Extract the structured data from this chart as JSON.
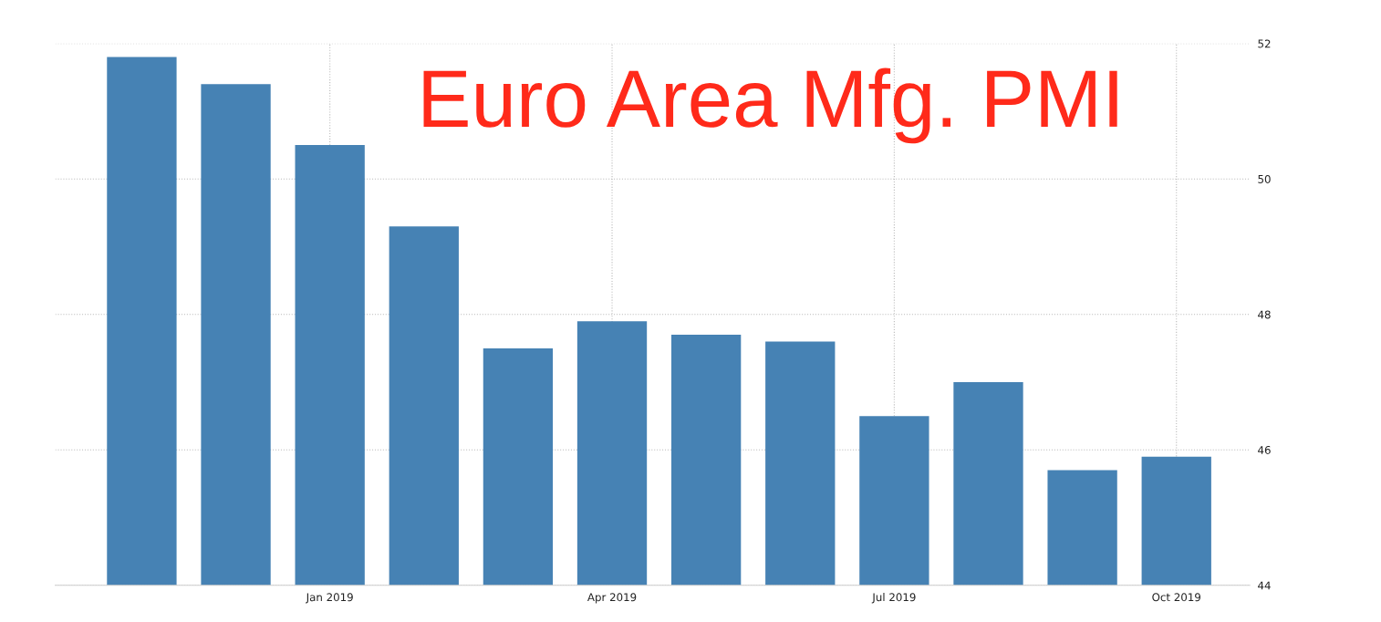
{
  "chart_data": {
    "type": "bar",
    "title": "Euro Area Mfg. PMI",
    "categories": [
      null,
      null,
      "Jan 2019",
      null,
      null,
      "Apr 2019",
      null,
      null,
      "Jul 2019",
      null,
      null,
      "Oct 2019"
    ],
    "values": [
      51.8,
      51.4,
      50.5,
      49.3,
      47.5,
      47.9,
      47.7,
      47.6,
      46.5,
      47.0,
      45.7,
      45.9
    ],
    "color": "#4682b4",
    "ylim": [
      44,
      52
    ],
    "yticks": [
      44,
      46,
      48,
      50,
      52
    ],
    "grid": true
  }
}
